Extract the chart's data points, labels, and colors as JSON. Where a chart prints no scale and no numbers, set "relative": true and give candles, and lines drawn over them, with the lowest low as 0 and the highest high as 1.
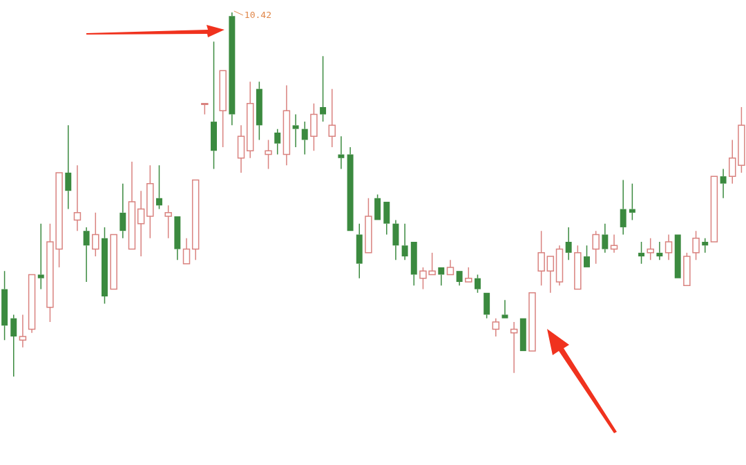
{
  "chart_data": {
    "type": "candlestick",
    "relative": true,
    "categories": [
      null,
      null,
      null,
      null,
      null,
      null,
      null,
      null,
      null,
      null,
      null,
      null,
      null,
      null,
      null,
      null,
      null,
      null,
      null,
      null,
      null,
      null,
      null,
      null,
      null,
      null,
      null,
      null,
      null,
      null,
      null,
      null,
      null,
      null,
      null,
      null,
      null,
      null,
      null,
      null,
      null,
      null,
      null,
      null,
      null,
      null,
      null,
      null,
      null,
      null,
      null,
      null,
      null,
      null,
      null,
      null,
      null,
      null,
      null,
      null,
      null,
      null,
      null,
      null,
      null,
      null,
      null,
      null,
      null,
      null,
      null,
      null,
      null,
      null,
      null,
      null,
      null,
      null,
      null,
      null,
      null,
      null
    ],
    "ohlc": [
      [
        0.24,
        0.29,
        0.1,
        0.14
      ],
      [
        0.16,
        0.17,
        0,
        0.11
      ],
      [
        0.1,
        0.17,
        0.08,
        0.11
      ],
      [
        0.13,
        0.28,
        0.12,
        0.28
      ],
      [
        0.28,
        0.42,
        0.24,
        0.27
      ],
      [
        0.19,
        0.42,
        0.15,
        0.37
      ],
      [
        0.35,
        0.56,
        0.3,
        0.56
      ],
      [
        0.56,
        0.69,
        0.46,
        0.51
      ],
      [
        0.43,
        0.58,
        0.4,
        0.45
      ],
      [
        0.4,
        0.41,
        0.26,
        0.36
      ],
      [
        0.35,
        0.45,
        0.33,
        0.39
      ],
      [
        0.38,
        0.41,
        0.2,
        0.22
      ],
      [
        0.24,
        0.39,
        0.24,
        0.39
      ],
      [
        0.45,
        0.53,
        0.38,
        0.4
      ],
      [
        0.35,
        0.59,
        0.35,
        0.48
      ],
      [
        0.42,
        0.51,
        0.33,
        0.46
      ],
      [
        0.44,
        0.58,
        0.38,
        0.53
      ],
      [
        0.49,
        0.58,
        0.46,
        0.47
      ],
      [
        0.44,
        0.47,
        0.38,
        0.45
      ],
      [
        0.44,
        0.44,
        0.32,
        0.35
      ],
      [
        0.31,
        0.38,
        0.31,
        0.35
      ],
      [
        0.35,
        0.54,
        0.32,
        0.54
      ],
      [
        0.75,
        0.75,
        0.72,
        0.75
      ],
      [
        0.7,
        0.92,
        0.57,
        0.62
      ],
      [
        0.73,
        0.84,
        0.63,
        0.84
      ],
      [
        0.99,
        1,
        0.69,
        0.72
      ],
      [
        0.6,
        0.69,
        0.56,
        0.66
      ],
      [
        0.62,
        0.81,
        0.6,
        0.75
      ],
      [
        0.79,
        0.81,
        0.65,
        0.69
      ],
      [
        0.61,
        0.65,
        0.57,
        0.62
      ],
      [
        0.67,
        0.68,
        0.61,
        0.64
      ],
      [
        0.61,
        0.8,
        0.58,
        0.73
      ],
      [
        0.69,
        0.72,
        0.63,
        0.68
      ],
      [
        0.68,
        0.7,
        0.61,
        0.65
      ],
      [
        0.66,
        0.75,
        0.62,
        0.72
      ],
      [
        0.74,
        0.88,
        0.7,
        0.72
      ],
      [
        0.66,
        0.79,
        0.63,
        0.69
      ],
      [
        0.61,
        0.66,
        0.57,
        0.6
      ],
      [
        0.61,
        0.63,
        0.4,
        0.4
      ],
      [
        0.39,
        0.42,
        0.27,
        0.31
      ],
      [
        0.34,
        0.49,
        0.34,
        0.44
      ],
      [
        0.49,
        0.5,
        0.43,
        0.43
      ],
      [
        0.48,
        0.48,
        0.39,
        0.42
      ],
      [
        0.42,
        0.43,
        0.32,
        0.36
      ],
      [
        0.36,
        0.42,
        0.32,
        0.33
      ],
      [
        0.37,
        0.37,
        0.25,
        0.28
      ],
      [
        0.27,
        0.3,
        0.24,
        0.29
      ],
      [
        0.28,
        0.34,
        0.28,
        0.29
      ],
      [
        0.3,
        0.3,
        0.25,
        0.28
      ],
      [
        0.28,
        0.32,
        0.28,
        0.3
      ],
      [
        0.29,
        0.29,
        0.25,
        0.26
      ],
      [
        0.26,
        0.3,
        0.26,
        0.27
      ],
      [
        0.27,
        0.28,
        0.23,
        0.24
      ],
      [
        0.23,
        0.23,
        0.16,
        0.17
      ],
      [
        0.13,
        0.16,
        0.11,
        0.15
      ],
      [
        0.17,
        0.21,
        0.16,
        0.16
      ],
      [
        0.12,
        0.15,
        0.01,
        0.13
      ],
      [
        0.16,
        0.16,
        0.07,
        0.07
      ],
      [
        0.07,
        0.23,
        0.07,
        0.23
      ],
      [
        0.29,
        0.4,
        0.25,
        0.34
      ],
      [
        0.29,
        0.33,
        0.23,
        0.33
      ],
      [
        0.26,
        0.36,
        0.25,
        0.35
      ],
      [
        0.37,
        0.41,
        0.32,
        0.34
      ],
      [
        0.24,
        0.36,
        0.24,
        0.34
      ],
      [
        0.33,
        0.36,
        0.3,
        0.3
      ],
      [
        0.35,
        0.4,
        0.31,
        0.39
      ],
      [
        0.39,
        0.42,
        0.34,
        0.35
      ],
      [
        0.35,
        0.39,
        0.34,
        0.36
      ],
      [
        0.46,
        0.54,
        0.39,
        0.41
      ],
      [
        0.46,
        0.53,
        0.43,
        0.45
      ],
      [
        0.34,
        0.37,
        0.31,
        0.33
      ],
      [
        0.34,
        0.38,
        0.32,
        0.35
      ],
      [
        0.34,
        0.37,
        0.32,
        0.33
      ],
      [
        0.34,
        0.39,
        0.32,
        0.37
      ],
      [
        0.39,
        0.39,
        0.27,
        0.27
      ],
      [
        0.25,
        0.34,
        0.25,
        0.33
      ],
      [
        0.34,
        0.4,
        0.32,
        0.38
      ],
      [
        0.37,
        0.38,
        0.34,
        0.36
      ],
      [
        0.37,
        0.55,
        0.37,
        0.55
      ],
      [
        0.55,
        0.57,
        0.49,
        0.53
      ],
      [
        0.55,
        0.65,
        0.53,
        0.6
      ],
      [
        0.58,
        0.74,
        0.56,
        0.69
      ]
    ],
    "colors": [
      "#3b8a3f",
      "#3b8a3f",
      "#d9827f",
      "#d9827f",
      "#3b8a3f",
      "#d9827f",
      "#d9827f",
      "#3b8a3f",
      "#d9827f",
      "#3b8a3f",
      "#d9827f",
      "#3b8a3f",
      "#d9827f",
      "#3b8a3f",
      "#d9827f",
      "#d9827f",
      "#d9827f",
      "#3b8a3f",
      "#d9827f",
      "#3b8a3f",
      "#d9827f",
      "#d9827f",
      "#d9827f",
      "#3b8a3f",
      "#d9827f",
      "#3b8a3f",
      "#d9827f",
      "#d9827f",
      "#3b8a3f",
      "#d9827f",
      "#3b8a3f",
      "#d9827f",
      "#3b8a3f",
      "#3b8a3f",
      "#d9827f",
      "#3b8a3f",
      "#d9827f",
      "#3b8a3f",
      "#3b8a3f",
      "#3b8a3f",
      "#d9827f",
      "#3b8a3f",
      "#3b8a3f",
      "#3b8a3f",
      "#3b8a3f",
      "#3b8a3f",
      "#d9827f",
      "#d9827f",
      "#3b8a3f",
      "#d9827f",
      "#3b8a3f",
      "#d9827f",
      "#3b8a3f",
      "#3b8a3f",
      "#d9827f",
      "#3b8a3f",
      "#d9827f",
      "#3b8a3f",
      "#d9827f",
      "#d9827f",
      "#d9827f",
      "#d9827f",
      "#3b8a3f",
      "#d9827f",
      "#3b8a3f",
      "#d9827f",
      "#3b8a3f",
      "#d9827f",
      "#3b8a3f",
      "#3b8a3f",
      "#3b8a3f",
      "#d9827f",
      "#3b8a3f",
      "#d9827f",
      "#3b8a3f",
      "#d9827f",
      "#d9827f",
      "#3b8a3f",
      "#d9827f",
      "#3b8a3f",
      "#d9827f",
      "#d9827f"
    ],
    "annotations": [
      "10.42"
    ]
  }
}
